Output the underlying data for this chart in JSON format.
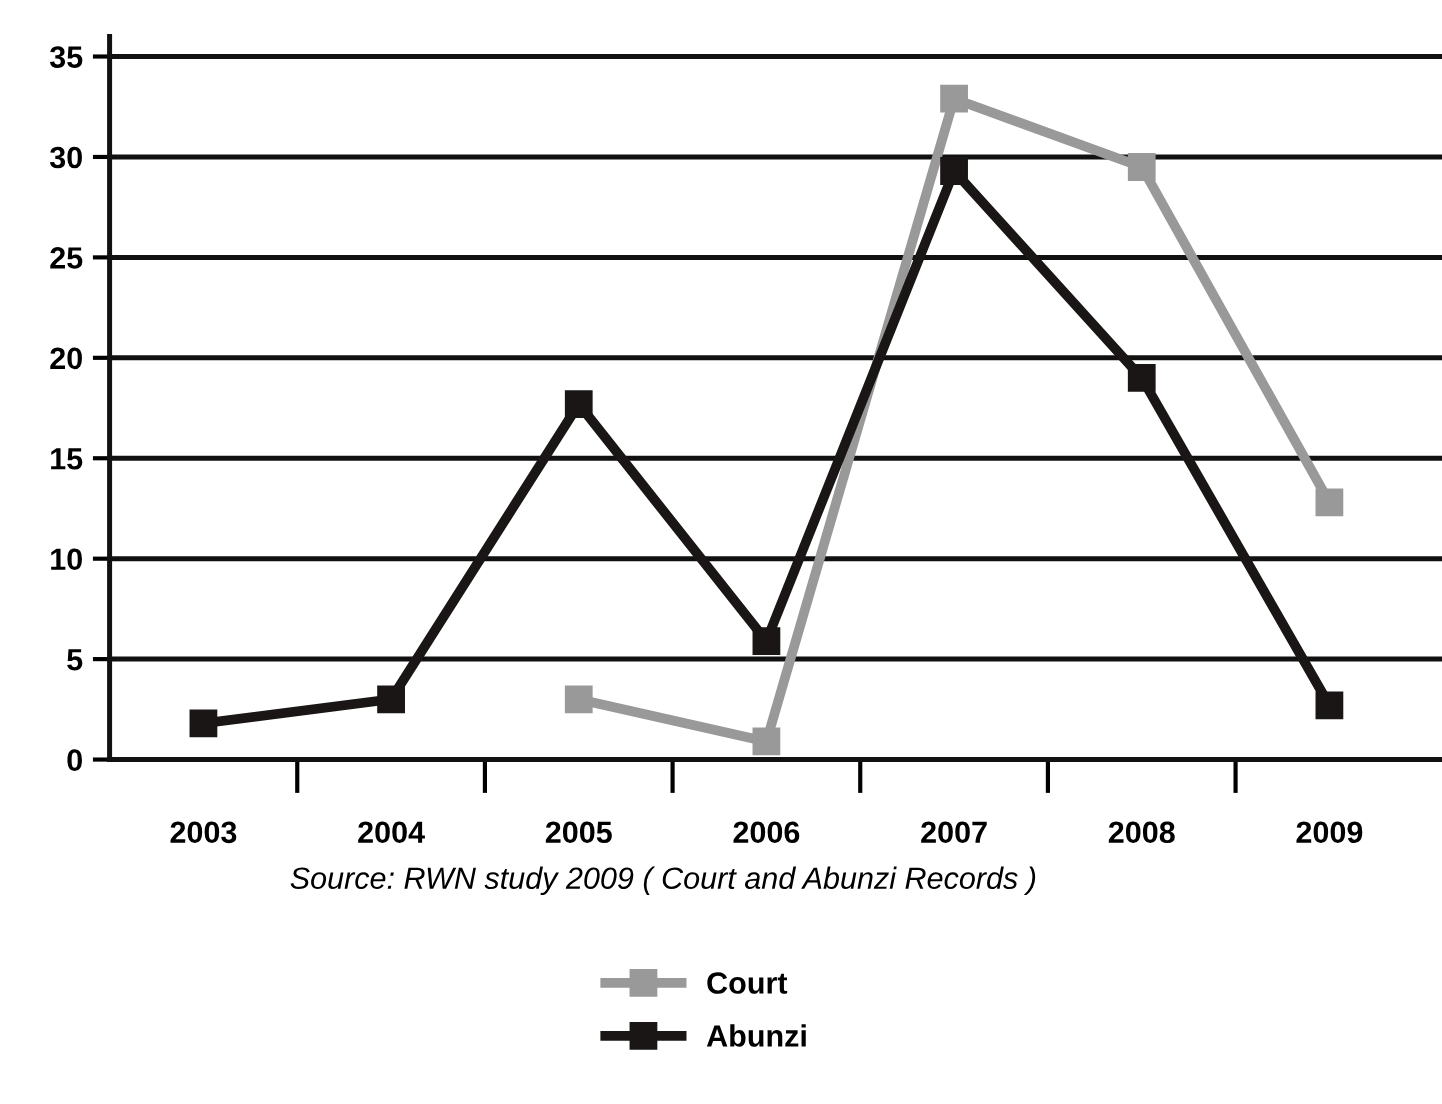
{
  "chart_data": {
    "type": "line",
    "categories": [
      "2003",
      "2004",
      "2005",
      "2006",
      "2007",
      "2008",
      "2009"
    ],
    "series": [
      {
        "name": "Court",
        "color": "#999999",
        "values": [
          null,
          null,
          3.0,
          0.9,
          32.9,
          29.5,
          12.8
        ]
      },
      {
        "name": "Abunzi",
        "color": "#1a1616",
        "values": [
          1.8,
          3.0,
          17.7,
          5.9,
          29.3,
          19.0,
          2.7
        ]
      }
    ],
    "ylim": [
      0,
      36
    ],
    "yticks": [
      0,
      5,
      10,
      15,
      20,
      25,
      30,
      35
    ],
    "grid": "y",
    "legend": "bottom",
    "marker": "square",
    "line_style": "solid",
    "annotations": [
      "Source: RWN study 2009 ( Court and Abunzi Records )"
    ]
  }
}
